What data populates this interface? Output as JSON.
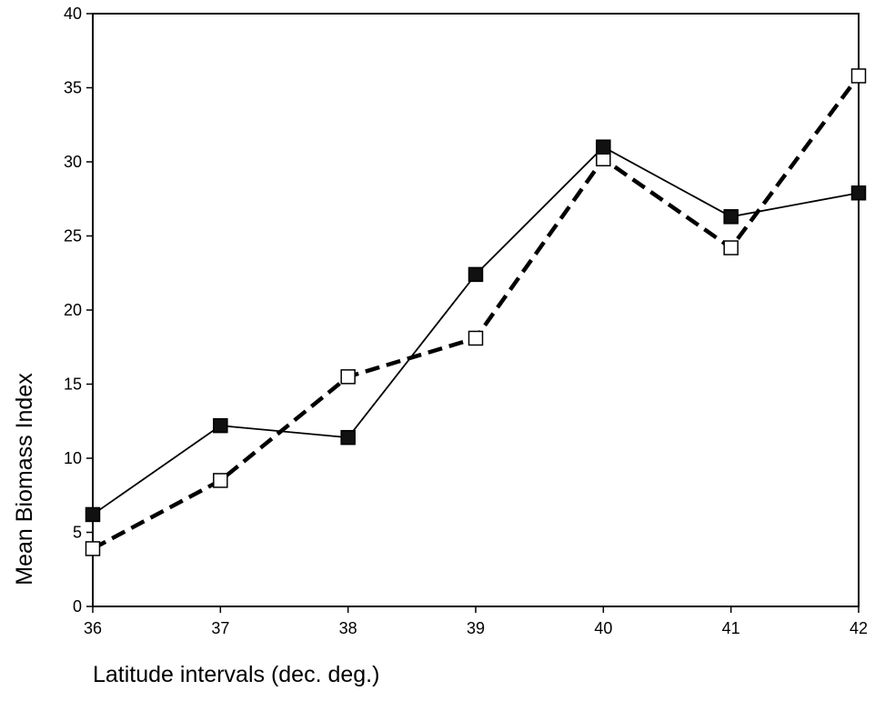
{
  "chart_data": {
    "type": "line",
    "title": "",
    "xlabel": "Latitude intervals (dec. deg.)",
    "ylabel": "Mean Biomass Index",
    "x": [
      36,
      37,
      38,
      39,
      40,
      41,
      42
    ],
    "xlim": [
      36,
      42
    ],
    "ylim": [
      0,
      40
    ],
    "xticks": [
      "36",
      "37",
      "38",
      "39",
      "40",
      "41",
      "42"
    ],
    "yticks": [
      "0",
      "5",
      "10",
      "15",
      "20",
      "25",
      "30",
      "35",
      "40"
    ],
    "grid": false,
    "legend": "none",
    "series": [
      {
        "values": [
          6.2,
          12.2,
          11.4,
          22.4,
          31.0,
          26.3,
          27.9
        ],
        "line_style": "solid",
        "marker": "filled-square",
        "color": "#000000"
      },
      {
        "values": [
          3.9,
          8.5,
          15.5,
          18.1,
          30.2,
          24.2,
          35.8
        ],
        "line_style": "dashed",
        "marker": "open-square",
        "color": "#000000"
      }
    ]
  }
}
